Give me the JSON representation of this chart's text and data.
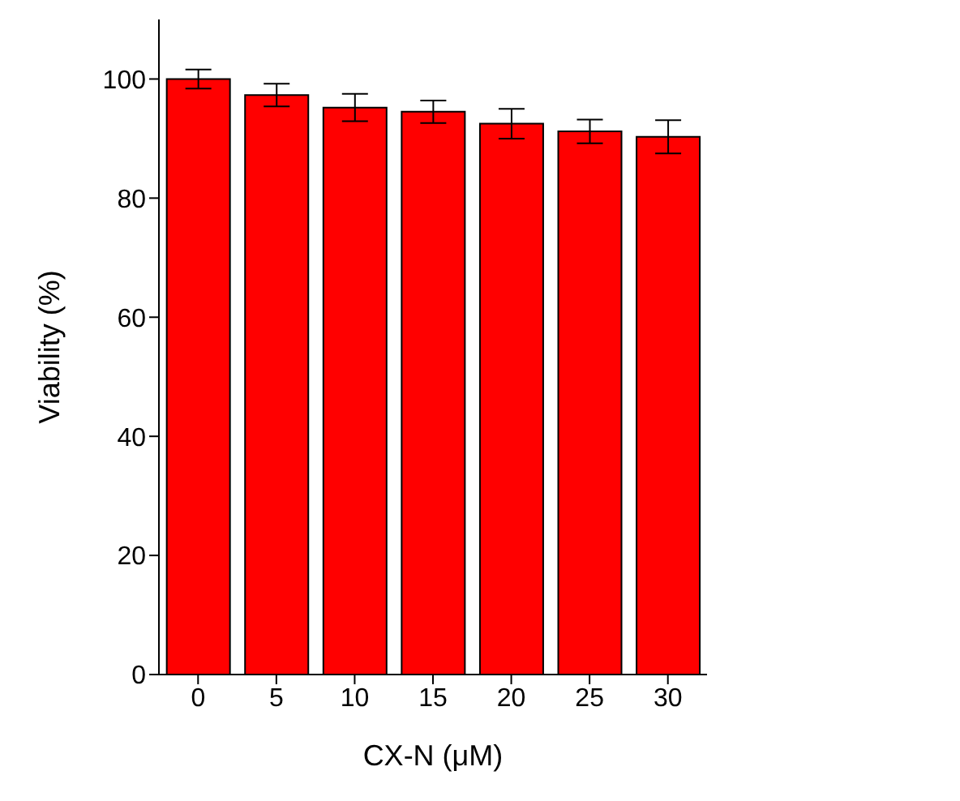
{
  "chart_data": {
    "type": "bar",
    "xlabel": "CX-N (μM)",
    "ylabel": "Viability (%)",
    "categories": [
      "0",
      "5",
      "10",
      "15",
      "20",
      "25",
      "30"
    ],
    "values": [
      100,
      97.3,
      95.2,
      94.5,
      92.5,
      91.2,
      90.3
    ],
    "errors": [
      1.6,
      1.9,
      2.3,
      1.9,
      2.5,
      2.0,
      2.8
    ],
    "color": "#ff0000",
    "ylim": [
      0,
      110
    ],
    "yticks": [
      0,
      20,
      40,
      60,
      80,
      100
    ],
    "grid": false,
    "legend": false
  }
}
